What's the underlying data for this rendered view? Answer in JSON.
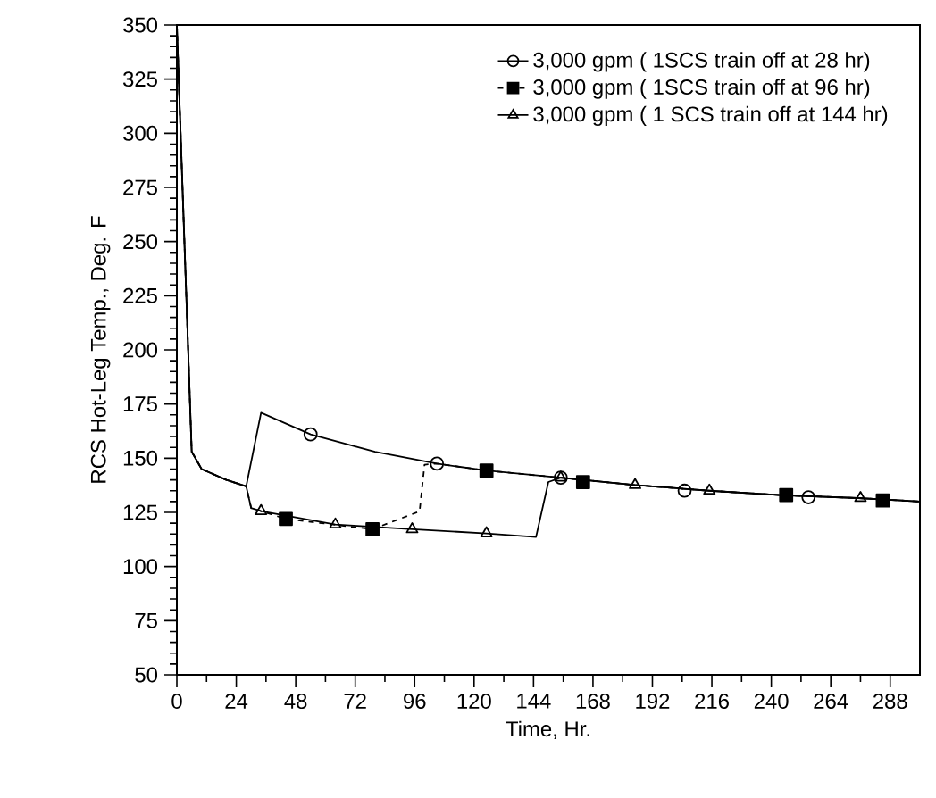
{
  "chart_data": {
    "type": "line",
    "xlabel": "Time,  Hr.",
    "ylabel": "RCS Hot-Leg Temp., Deg. F",
    "xlim": [
      0,
      300
    ],
    "ylim": [
      50,
      350
    ],
    "xticks": [
      0,
      24,
      48,
      72,
      96,
      120,
      144,
      168,
      192,
      216,
      240,
      264,
      288
    ],
    "yticks": [
      50,
      75,
      100,
      125,
      150,
      175,
      200,
      225,
      250,
      275,
      300,
      325,
      350
    ],
    "legend": "top right",
    "grid": false,
    "series": [
      {
        "name": "3,000 gpm ( 1SCS train off at 28 hr)",
        "color": "#000000",
        "line_style": "solid",
        "marker": "none",
        "x": [
          0,
          6,
          10,
          20,
          28,
          34,
          54,
          80,
          105,
          125,
          155,
          185,
          215,
          245,
          275,
          300
        ],
        "values": [
          350,
          153,
          145,
          140,
          137,
          171,
          161,
          153,
          147.5,
          144.3,
          141,
          137.6,
          135,
          132.9,
          131.6,
          130
        ]
      },
      {
        "name": "3,000 gpm ( 1SCS train off at 96 hr)",
        "color": "#000000",
        "line_style": "dashed",
        "marker": "none",
        "x": [
          0,
          6,
          10,
          20,
          28,
          30,
          44,
          79,
          98,
          100,
          105,
          125,
          155,
          185,
          215,
          245,
          275,
          300
        ],
        "values": [
          350,
          153,
          145,
          140,
          137,
          127,
          122,
          117.2,
          125.5,
          147,
          147.5,
          144.3,
          141,
          137.6,
          135,
          132.9,
          131.6,
          130
        ]
      },
      {
        "name": "3,000 gpm ( 1 SCS train off at 144 hr)",
        "color": "#000000",
        "line_style": "solid",
        "marker": "none",
        "x": [
          0,
          6,
          10,
          20,
          28,
          30,
          34,
          64,
          95,
          125,
          145,
          150,
          155,
          185,
          215,
          245,
          275,
          300
        ],
        "values": [
          350,
          153,
          145,
          140,
          137,
          127,
          125.6,
          119.4,
          117.2,
          115.3,
          113.6,
          139,
          141,
          137.6,
          135,
          132.9,
          131.6,
          130
        ]
      },
      {
        "type": "scatter",
        "color": "#000000",
        "marker": "circle",
        "x": [
          54,
          105,
          155,
          205,
          255
        ],
        "values": [
          161,
          147.5,
          141,
          135,
          132
        ]
      },
      {
        "type": "scatter",
        "color": "#000000",
        "marker": "square",
        "x": [
          44,
          79,
          125,
          164,
          246,
          285
        ],
        "values": [
          122,
          117.2,
          144.3,
          139,
          133,
          130.5
        ]
      },
      {
        "type": "scatter",
        "color": "#000000",
        "marker": "triangle",
        "x": [
          34,
          64,
          95,
          125,
          155,
          185,
          215,
          276
        ],
        "values": [
          125.6,
          119.4,
          117.2,
          115.3,
          141,
          137.6,
          135,
          131.6
        ]
      }
    ]
  }
}
